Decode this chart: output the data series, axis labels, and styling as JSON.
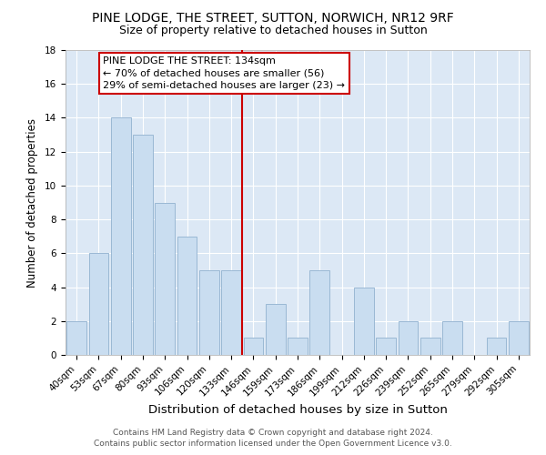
{
  "title": "PINE LODGE, THE STREET, SUTTON, NORWICH, NR12 9RF",
  "subtitle": "Size of property relative to detached houses in Sutton",
  "xlabel": "Distribution of detached houses by size in Sutton",
  "ylabel": "Number of detached properties",
  "categories": [
    "40sqm",
    "53sqm",
    "67sqm",
    "80sqm",
    "93sqm",
    "106sqm",
    "120sqm",
    "133sqm",
    "146sqm",
    "159sqm",
    "173sqm",
    "186sqm",
    "199sqm",
    "212sqm",
    "226sqm",
    "239sqm",
    "252sqm",
    "265sqm",
    "279sqm",
    "292sqm",
    "305sqm"
  ],
  "values": [
    2,
    6,
    14,
    13,
    9,
    7,
    5,
    5,
    1,
    3,
    1,
    5,
    0,
    4,
    1,
    2,
    1,
    2,
    0,
    1,
    2
  ],
  "bar_color": "#c9ddf0",
  "bar_edge_color": "#9ab8d4",
  "vline_x": 7.5,
  "vline_color": "#cc0000",
  "annotation_text": "PINE LODGE THE STREET: 134sqm\n← 70% of detached houses are smaller (56)\n29% of semi-detached houses are larger (23) →",
  "annotation_box_color": "#ffffff",
  "annotation_box_edge_color": "#cc0000",
  "ylim": [
    0,
    18
  ],
  "yticks": [
    0,
    2,
    4,
    6,
    8,
    10,
    12,
    14,
    16,
    18
  ],
  "background_color": "#dce8f5",
  "footer_line1": "Contains HM Land Registry data © Crown copyright and database right 2024.",
  "footer_line2": "Contains public sector information licensed under the Open Government Licence v3.0.",
  "title_fontsize": 10,
  "subtitle_fontsize": 9,
  "xlabel_fontsize": 9.5,
  "ylabel_fontsize": 8.5,
  "tick_fontsize": 7.5,
  "footer_fontsize": 6.5,
  "annotation_fontsize": 8
}
